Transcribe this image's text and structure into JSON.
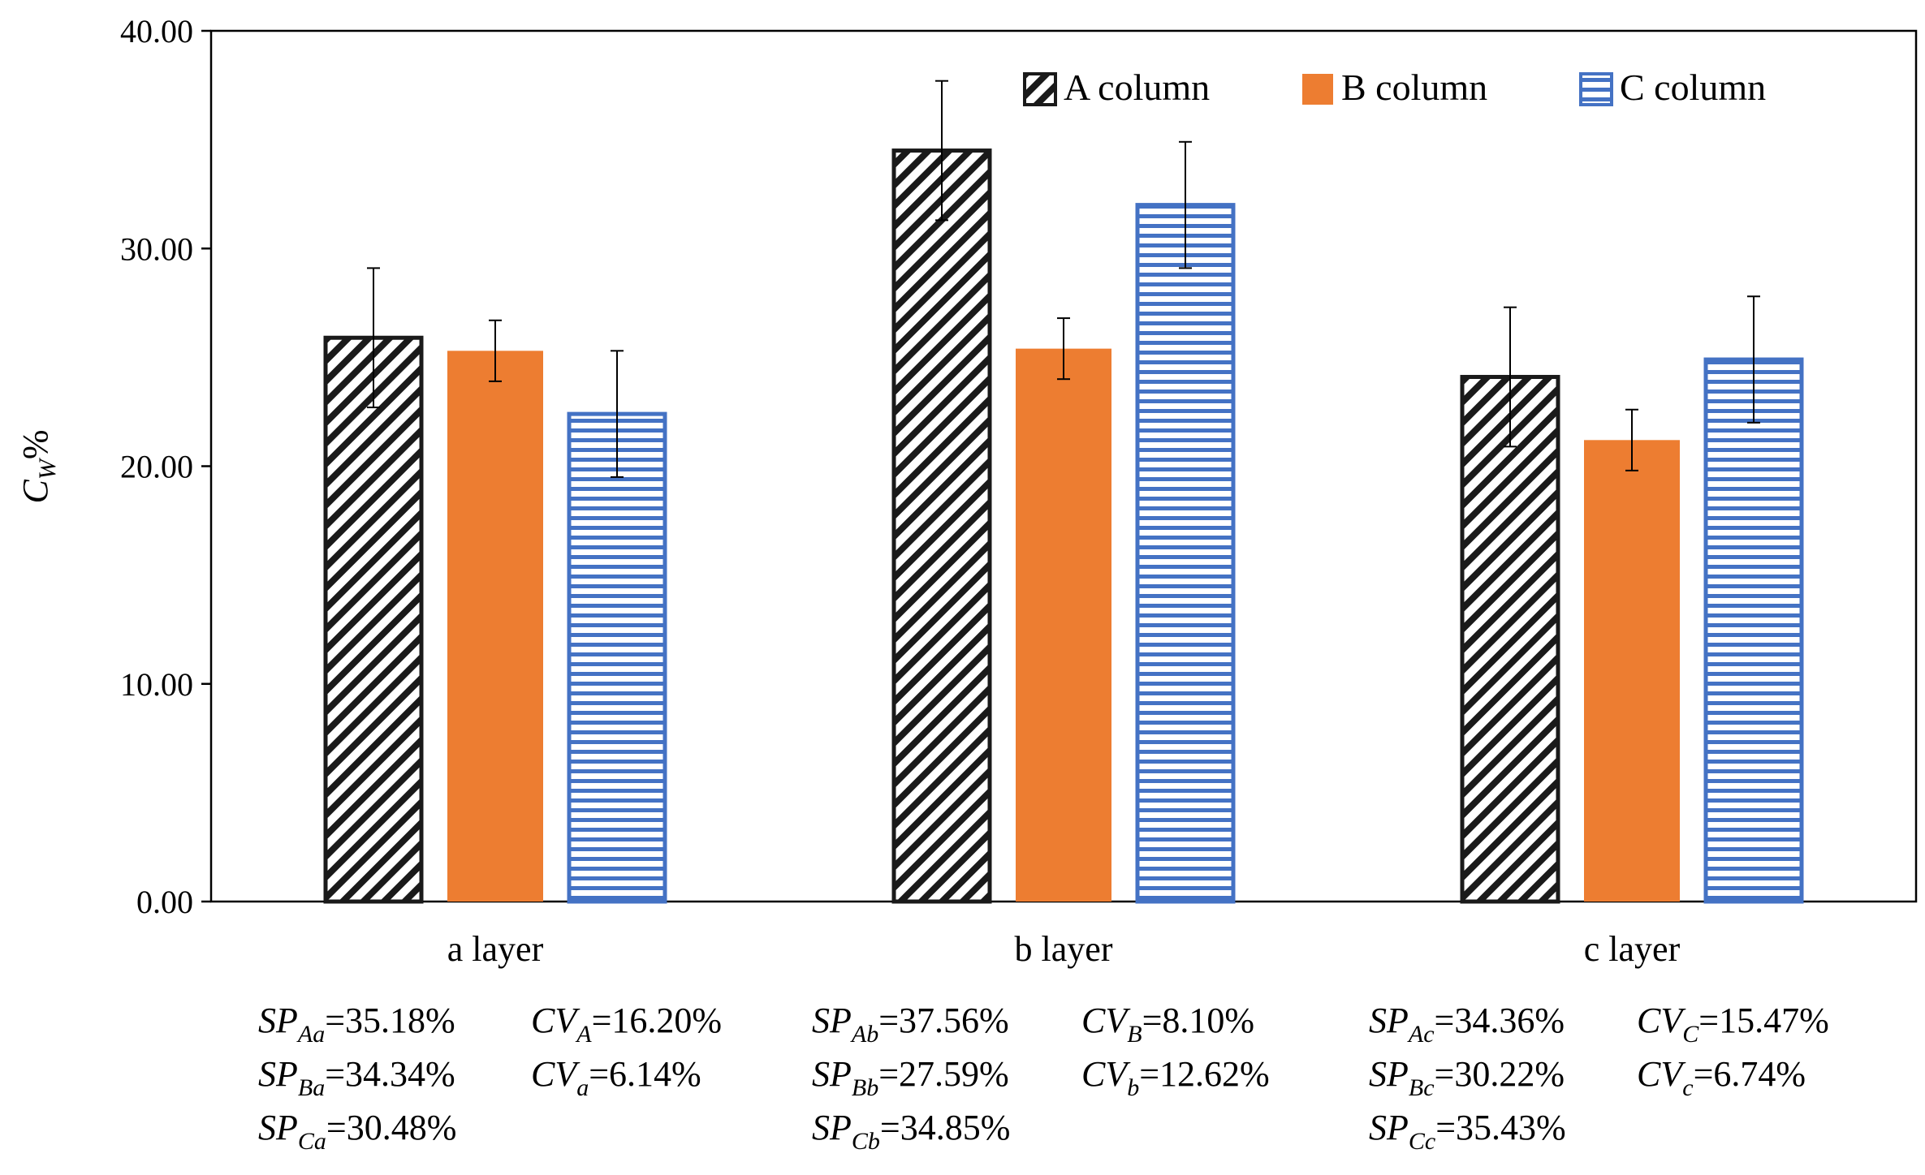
{
  "chart_data": {
    "type": "bar",
    "categories": [
      "a layer",
      "b layer",
      "c layer"
    ],
    "ylabel": {
      "main": "C",
      "sub": "W",
      "suffix": "%"
    },
    "ylim": [
      0,
      40
    ],
    "yticks": [
      "0.00",
      "10.00",
      "20.00",
      "30.00",
      "40.00"
    ],
    "ytick_values": [
      0,
      10,
      20,
      30,
      40
    ],
    "grid": false,
    "legend_position": "top-right",
    "series": [
      {
        "name": "A column",
        "pattern": "diagonal-hatch",
        "color": "#1a1a1a",
        "values": [
          25.9,
          34.5,
          24.1
        ],
        "errors": [
          3.2,
          3.2,
          3.2
        ]
      },
      {
        "name": "B column",
        "pattern": "solid",
        "color": "#ED7D31",
        "values": [
          25.3,
          25.4,
          21.2
        ],
        "errors": [
          1.4,
          1.4,
          1.4
        ]
      },
      {
        "name": "C column",
        "pattern": "horizontal-stripes",
        "color": "#4472C4",
        "values": [
          22.4,
          32.0,
          24.9
        ],
        "errors": [
          2.9,
          2.9,
          2.9
        ]
      }
    ],
    "annotations": [
      [
        [
          {
            "sym": "SP",
            "sub": "Aa",
            "val": "=35.18%"
          },
          {
            "sym": "CV",
            "sub": "A",
            "val": "=16.20%"
          }
        ],
        [
          {
            "sym": "SP",
            "sub": "Ba",
            "val": "=34.34%"
          },
          {
            "sym": "CV",
            "sub": "a",
            "val": "=6.14%"
          }
        ],
        [
          {
            "sym": "SP",
            "sub": "Ca",
            "val": "=30.48%"
          }
        ]
      ],
      [
        [
          {
            "sym": "SP",
            "sub": "Ab",
            "val": "=37.56%"
          },
          {
            "sym": "CV",
            "sub": "B",
            "val": "=8.10%"
          }
        ],
        [
          {
            "sym": "SP",
            "sub": "Bb",
            "val": "=27.59%"
          },
          {
            "sym": "CV",
            "sub": "b",
            "val": "=12.62%"
          }
        ],
        [
          {
            "sym": "SP",
            "sub": "Cb",
            "val": "=34.85%"
          }
        ]
      ],
      [
        [
          {
            "sym": "SP",
            "sub": "Ac",
            "val": "=34.36%"
          },
          {
            "sym": "CV",
            "sub": "C",
            "val": "=15.47%"
          }
        ],
        [
          {
            "sym": "SP",
            "sub": "Bc",
            "val": "=30.22%"
          },
          {
            "sym": "CV",
            "sub": "c",
            "val": "=6.74%"
          }
        ],
        [
          {
            "sym": "SP",
            "sub": "Cc",
            "val": "=35.43%"
          }
        ]
      ]
    ]
  }
}
